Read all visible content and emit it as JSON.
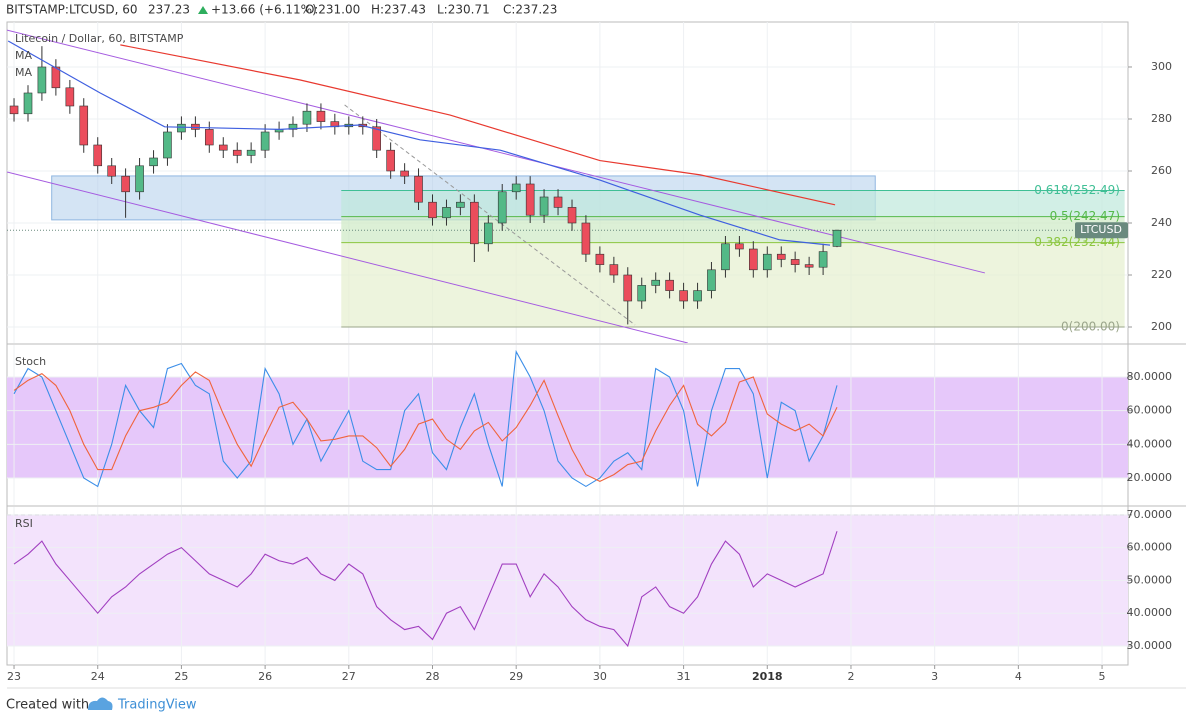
{
  "header": {
    "symbol": "BITSTAMP:LTCUSD, 60",
    "last": "237.23",
    "change": "+13.66 (+6.11%)",
    "open": "O:231.00",
    "high": "H:237.43",
    "low": "L:230.71",
    "close": "C:237.23"
  },
  "footer": {
    "created": "Created with",
    "brand": "TradingView"
  },
  "chart_data": [
    {
      "type": "candlestick",
      "title": "Litecoin / Dollar, 60, BITSTAMP",
      "up_color": "#53b987",
      "down_color": "#eb4d5c",
      "x": [
        0,
        0.167,
        0.333,
        0.5,
        0.667,
        0.833,
        1,
        1.167,
        1.333,
        1.5,
        1.667,
        1.833,
        2,
        2.167,
        2.333,
        2.5,
        2.667,
        2.833,
        3,
        3.167,
        3.333,
        3.5,
        3.667,
        3.833,
        4,
        4.167,
        4.333,
        4.5,
        4.667,
        4.833,
        5,
        5.167,
        5.333,
        5.5,
        5.667,
        5.833,
        6,
        6.167,
        6.333,
        6.5,
        6.667,
        6.833,
        7,
        7.167,
        7.333,
        7.5,
        7.667,
        7.833,
        8,
        8.167,
        8.333,
        8.5,
        8.667,
        8.833,
        9,
        9.167,
        9.333,
        9.5,
        9.667,
        9.833
      ],
      "open": [
        285,
        282,
        290,
        300,
        292,
        285,
        270,
        262,
        258,
        252,
        262,
        265,
        275,
        278,
        276,
        270,
        268,
        266,
        268,
        275,
        276,
        278,
        283,
        279,
        277,
        278,
        277,
        268,
        260,
        258,
        248,
        242,
        246,
        248,
        232,
        240,
        252,
        255,
        243,
        250,
        246,
        240,
        228,
        224,
        220,
        210,
        216,
        218,
        214,
        210,
        214,
        222,
        232,
        230,
        222,
        228,
        226,
        224,
        223,
        231
      ],
      "high": [
        288,
        293,
        308,
        303,
        295,
        288,
        273,
        265,
        261,
        265,
        268,
        278,
        281,
        281,
        279,
        273,
        271,
        271,
        278,
        279,
        281,
        286,
        286,
        282,
        281,
        281,
        280,
        271,
        263,
        261,
        251,
        249,
        251,
        251,
        243,
        255,
        258,
        258,
        253,
        253,
        249,
        243,
        231,
        227,
        223,
        219,
        221,
        221,
        217,
        217,
        225,
        235,
        235,
        233,
        231,
        231,
        229,
        227,
        232,
        237.43
      ],
      "low": [
        279,
        279,
        287,
        289,
        282,
        267,
        259,
        255,
        242,
        249,
        259,
        262,
        272,
        273,
        267,
        265,
        263,
        263,
        265,
        272,
        273,
        275,
        276,
        274,
        274,
        274,
        265,
        257,
        255,
        245,
        239,
        239,
        243,
        225,
        229,
        237,
        249,
        240,
        240,
        243,
        237,
        225,
        221,
        217,
        201,
        207,
        213,
        211,
        207,
        207,
        211,
        219,
        227,
        219,
        219,
        223,
        221,
        220,
        220,
        230.71
      ],
      "close": [
        282,
        290,
        300,
        292,
        285,
        270,
        262,
        258,
        252,
        262,
        265,
        275,
        278,
        276,
        270,
        268,
        266,
        268,
        275,
        276,
        278,
        283,
        279,
        277,
        278,
        277,
        268,
        260,
        258,
        248,
        242,
        246,
        248,
        232,
        240,
        252,
        255,
        243,
        250,
        246,
        240,
        228,
        224,
        220,
        210,
        216,
        218,
        214,
        210,
        214,
        222,
        232,
        230,
        222,
        228,
        226,
        224,
        223,
        229,
        237.23
      ],
      "series": [
        {
          "name": "MA",
          "color": "#e8392f",
          "x": [
            1.27,
            3.42,
            5.21,
            7.0,
            8.2,
            9.81
          ],
          "values": [
            308.5,
            295,
            281.5,
            264,
            258.5,
            247
          ]
        },
        {
          "name": "MA",
          "color": "#3f5fe0",
          "x": [
            -0.07,
            1.03,
            1.8,
            3.18,
            4.13,
            4.85,
            5.81,
            7.0,
            8.2,
            9.15,
            9.75
          ],
          "values": [
            310,
            290,
            277,
            276,
            277.7,
            272,
            268,
            256.5,
            243,
            233.5,
            231.5
          ]
        }
      ],
      "zones": [
        {
          "x": [
            0.45,
            10.29
          ],
          "y": [
            241.2,
            258.1
          ],
          "color": "#a9c9ea"
        }
      ],
      "fib_xlim": [
        3.91,
        13.27
      ],
      "fib_levels": [
        {
          "value": 252.49,
          "label": "0.618(252.49)",
          "color": "#3fbf95",
          "fill": "#bfe8dc"
        },
        {
          "value": 242.47,
          "label": "0.5(242.47)",
          "color": "#56b94a",
          "fill": "#cdeac4"
        },
        {
          "value": 232.44,
          "label": "0.382(232.44)",
          "color": "#8cc63f",
          "fill": "#e6f0cf"
        },
        {
          "value": 200,
          "label": "0(200.00)",
          "color": "#9aa58a"
        }
      ],
      "trendlines": [
        {
          "x": [
            -0.084,
            11.6
          ],
          "y": [
            314.2,
            220.8
          ],
          "color": "#a55be0",
          "dash": false
        },
        {
          "x": [
            -0.084,
            8.05
          ],
          "y": [
            259.6,
            193.85
          ],
          "color": "#a55be0",
          "dash": false
        },
        {
          "x": [
            3.95,
            7.42
          ],
          "y": [
            285.4,
            200.8
          ],
          "color": "#999999",
          "dash": true
        }
      ],
      "last_price": 237.23,
      "last_label": "LTCUSD",
      "xlim": [
        -0.084,
        13.31
      ],
      "ylim": [
        193.85,
        317.3
      ],
      "yticks": [
        200,
        220,
        240,
        260,
        280,
        300
      ],
      "grid": true
    },
    {
      "type": "line",
      "title": "Stoch",
      "band": [
        20,
        80
      ],
      "band_color": "#e6c8fa",
      "x": [
        0,
        0.167,
        0.333,
        0.5,
        0.667,
        0.833,
        1,
        1.167,
        1.333,
        1.5,
        1.667,
        1.833,
        2,
        2.167,
        2.333,
        2.5,
        2.667,
        2.833,
        3,
        3.167,
        3.333,
        3.5,
        3.667,
        3.833,
        4,
        4.167,
        4.333,
        4.5,
        4.667,
        4.833,
        5,
        5.167,
        5.333,
        5.5,
        5.667,
        5.833,
        6,
        6.167,
        6.333,
        6.5,
        6.667,
        6.833,
        7,
        7.167,
        7.333,
        7.5,
        7.667,
        7.833,
        8,
        8.167,
        8.333,
        8.5,
        8.667,
        8.833,
        9,
        9.167,
        9.333,
        9.5,
        9.667,
        9.833
      ],
      "series": [
        {
          "color": "#3c8ee8",
          "values": [
            70,
            85,
            80,
            60,
            40,
            20,
            15,
            40,
            75,
            60,
            50,
            85,
            88,
            75,
            70,
            30,
            20,
            30,
            85,
            70,
            40,
            55,
            30,
            45,
            60,
            30,
            25,
            25,
            60,
            70,
            35,
            25,
            50,
            70,
            40,
            15,
            95,
            80,
            60,
            30,
            20,
            15,
            20,
            30,
            35,
            25,
            85,
            80,
            60,
            15,
            60,
            85,
            85,
            70,
            20,
            65,
            60,
            30,
            45,
            75
          ]
        },
        {
          "color": "#f0643c",
          "values": [
            72,
            78,
            82,
            75,
            60,
            40,
            25,
            25,
            45,
            60,
            62,
            65,
            75,
            83,
            78,
            58,
            40,
            27,
            45,
            62,
            65,
            55,
            42,
            43,
            45,
            45,
            38,
            27,
            37,
            52,
            55,
            43,
            37,
            48,
            53,
            42,
            50,
            63,
            78,
            57,
            37,
            22,
            18,
            22,
            28,
            30,
            48,
            63,
            75,
            52,
            45,
            53,
            77,
            80,
            58,
            52,
            48,
            52,
            45,
            62
          ]
        }
      ],
      "xlim": [
        -0.084,
        13.31
      ],
      "ylim": [
        3.96,
        99.0
      ],
      "yticks": [
        {
          "value": 20,
          "label": "20.0000"
        },
        {
          "value": 40,
          "label": "40.0000"
        },
        {
          "value": 60,
          "label": "60.0000"
        },
        {
          "value": 80,
          "label": "80.0000"
        }
      ],
      "grid": true
    },
    {
      "type": "line",
      "title": "RSI",
      "band": [
        30,
        70
      ],
      "band_color": "#f3e3fc",
      "x": [
        0,
        0.167,
        0.333,
        0.5,
        0.667,
        0.833,
        1,
        1.167,
        1.333,
        1.5,
        1.667,
        1.833,
        2,
        2.167,
        2.333,
        2.5,
        2.667,
        2.833,
        3,
        3.167,
        3.333,
        3.5,
        3.667,
        3.833,
        4,
        4.167,
        4.333,
        4.5,
        4.667,
        4.833,
        5,
        5.167,
        5.333,
        5.5,
        5.667,
        5.833,
        6,
        6.167,
        6.333,
        6.5,
        6.667,
        6.833,
        7,
        7.167,
        7.333,
        7.5,
        7.667,
        7.833,
        8,
        8.167,
        8.333,
        8.5,
        8.667,
        8.833,
        9,
        9.167,
        9.333,
        9.5,
        9.667,
        9.833
      ],
      "series": [
        {
          "color": "#a13fc0",
          "values": [
            55,
            58,
            62,
            55,
            50,
            45,
            40,
            45,
            48,
            52,
            55,
            58,
            60,
            56,
            52,
            50,
            48,
            52,
            58,
            56,
            55,
            57,
            52,
            50,
            55,
            52,
            42,
            38,
            35,
            36,
            32,
            40,
            42,
            35,
            45,
            55,
            55,
            45,
            52,
            48,
            42,
            38,
            36,
            35,
            30,
            45,
            48,
            42,
            40,
            45,
            55,
            62,
            58,
            48,
            52,
            50,
            48,
            50,
            52,
            65
          ]
        }
      ],
      "xlim": [
        -0.084,
        13.31
      ],
      "ylim": [
        24.2,
        72.4
      ],
      "yticks": [
        {
          "value": 30,
          "label": "30.0000"
        },
        {
          "value": 40,
          "label": "40.0000"
        },
        {
          "value": 50,
          "label": "50.0000"
        },
        {
          "value": 60,
          "label": "60.0000"
        },
        {
          "value": 70,
          "label": "70.0000"
        }
      ],
      "xticks": [
        {
          "value": 0,
          "label": "23"
        },
        {
          "value": 1,
          "label": "24"
        },
        {
          "value": 2,
          "label": "25"
        },
        {
          "value": 3,
          "label": "26"
        },
        {
          "value": 4,
          "label": "27"
        },
        {
          "value": 5,
          "label": "28"
        },
        {
          "value": 6,
          "label": "29"
        },
        {
          "value": 7,
          "label": "30"
        },
        {
          "value": 8,
          "label": "31"
        },
        {
          "value": 9,
          "label": "2018"
        },
        {
          "value": 10,
          "label": "2"
        },
        {
          "value": 11,
          "label": "3"
        },
        {
          "value": 12,
          "label": "4"
        },
        {
          "value": 13,
          "label": "5"
        }
      ],
      "grid": true
    }
  ]
}
